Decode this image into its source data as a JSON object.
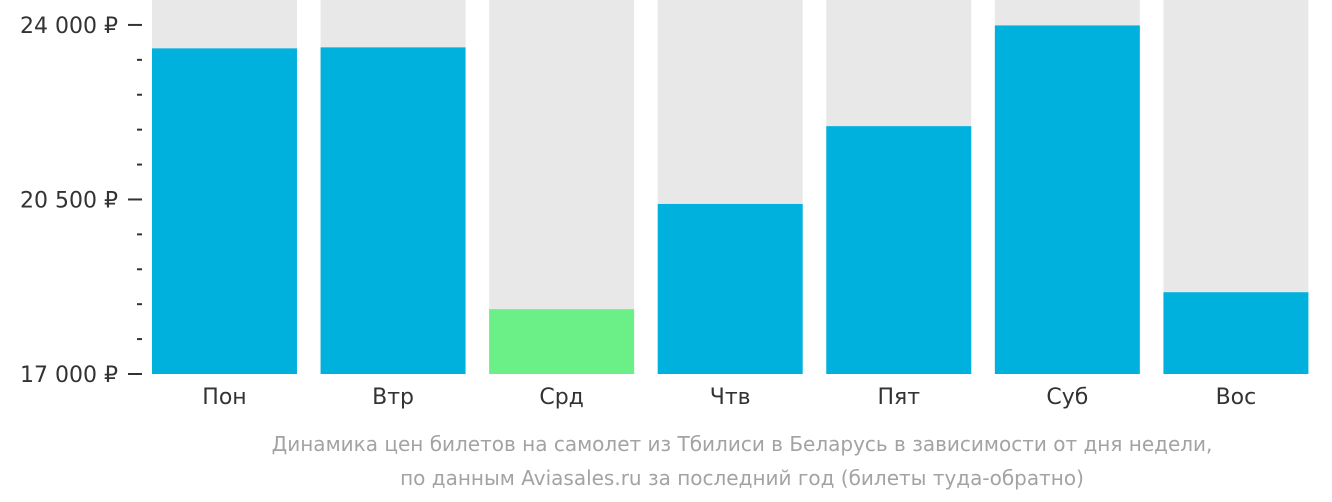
{
  "chart_data": {
    "type": "bar",
    "categories": [
      "Пон",
      "Втр",
      "Срд",
      "Чтв",
      "Пят",
      "Суб",
      "Вос"
    ],
    "values": [
      23530,
      23550,
      18300,
      20410,
      21970,
      23990,
      18640
    ],
    "highlight_index": 2,
    "ylim": [
      17000,
      24500
    ],
    "y_major_ticks": [
      17000,
      20500,
      24000
    ],
    "y_major_tick_labels": [
      "17 000 ₽",
      "20 500 ₽",
      "24 000 ₽"
    ],
    "y_minor_step": 700,
    "caption_lines": [
      "Динамика цен билетов на самолет из Тбилиси в Беларусь в зависимости от дня недели,",
      "по данным Aviasales.ru за последний год (билеты туда-обратно)"
    ],
    "colors": {
      "bar": "#00b0dd",
      "highlight": "#6bf087",
      "track": "#e8e8e8",
      "axis_text": "#333333",
      "tick": "#333333",
      "caption": "#a3a3a3"
    }
  }
}
